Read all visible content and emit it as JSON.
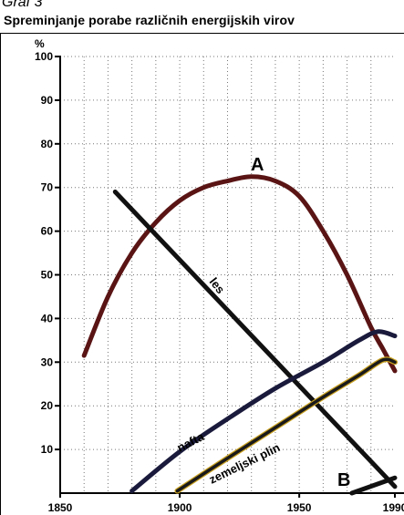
{
  "header": {
    "top_partial": "Graf 3",
    "title": "Spreminjanje porabe različnih energijskih virov"
  },
  "chart_data": {
    "type": "line",
    "title": "Spreminjanje porabe različnih energijskih virov",
    "ylabel": "%",
    "xlim": [
      1850,
      1990
    ],
    "ylim": [
      0,
      100
    ],
    "x_ticks": [
      1850,
      1900,
      1950,
      1990
    ],
    "y_ticks": [
      10,
      20,
      30,
      40,
      50,
      60,
      70,
      80,
      90,
      100
    ],
    "grid": true,
    "series": [
      {
        "name": "A",
        "color": "#5a1414",
        "points": [
          [
            1860,
            31.5
          ],
          [
            1870,
            45
          ],
          [
            1880,
            55
          ],
          [
            1890,
            62
          ],
          [
            1900,
            67
          ],
          [
            1910,
            70
          ],
          [
            1920,
            71.5
          ],
          [
            1930,
            72.5
          ],
          [
            1940,
            71.5
          ],
          [
            1950,
            68
          ],
          [
            1960,
            60
          ],
          [
            1970,
            50
          ],
          [
            1980,
            38
          ],
          [
            1985,
            33
          ],
          [
            1990,
            28
          ]
        ]
      },
      {
        "name": "les",
        "color": "#111111",
        "points": [
          [
            1873,
            69
          ],
          [
            1990,
            1.5
          ]
        ]
      },
      {
        "name": "nafta",
        "color": "#1a1a3c",
        "points": [
          [
            1880,
            0.5
          ],
          [
            1900,
            9.5
          ],
          [
            1920,
            17
          ],
          [
            1940,
            24
          ],
          [
            1960,
            30
          ],
          [
            1975,
            35
          ],
          [
            1983,
            37
          ],
          [
            1990,
            36
          ]
        ]
      },
      {
        "name": "zemeljski plin",
        "color": "#1a1a1a",
        "outline": "#c8a020",
        "points": [
          [
            1899,
            0.5
          ],
          [
            1920,
            8
          ],
          [
            1940,
            15
          ],
          [
            1960,
            22
          ],
          [
            1975,
            27
          ],
          [
            1985,
            30.5
          ],
          [
            1990,
            30
          ]
        ]
      },
      {
        "name": "B",
        "color": "#111111",
        "points": [
          [
            1972,
            0
          ],
          [
            1990,
            3.5
          ]
        ]
      }
    ]
  }
}
